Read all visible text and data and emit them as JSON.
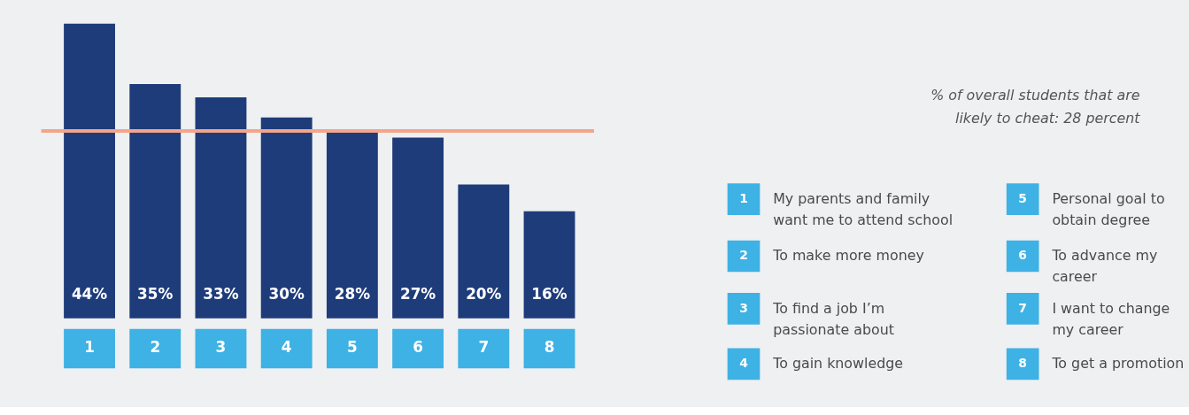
{
  "chart_data": {
    "type": "bar",
    "categories": [
      "1",
      "2",
      "3",
      "4",
      "5",
      "6",
      "7",
      "8"
    ],
    "values": [
      44,
      35,
      33,
      30,
      28,
      27,
      20,
      16
    ],
    "value_labels": [
      "44%",
      "35%",
      "33%",
      "30%",
      "28%",
      "27%",
      "20%",
      "16%"
    ],
    "color": "#1e3c7a",
    "ref_lines": [
      {
        "axis": "y",
        "value": 28,
        "color": "#f4a58a"
      }
    ],
    "annotations": [
      "% of overall students that are likely to cheat: 28 percent",
      "My parents and family want me to attend school",
      "To make more money",
      "To find a job I’m passionate about",
      "To gain knowledge",
      "Personal goal to obtain degree",
      "To advance my career",
      "I want to change my career",
      "To get a promotion"
    ]
  }
}
